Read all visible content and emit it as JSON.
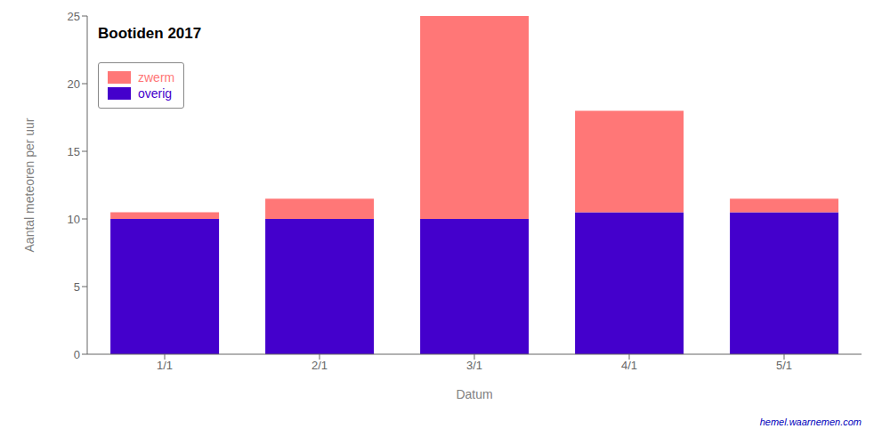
{
  "chart_data": {
    "type": "bar",
    "title": "Bootiden 2017",
    "xlabel": "Datum",
    "ylabel": "Aantal meteoren per uur",
    "categories": [
      "1/1",
      "2/1",
      "3/1",
      "4/1",
      "5/1"
    ],
    "series": [
      {
        "name": "overig",
        "color": "#4400cc",
        "values": [
          10,
          10,
          10,
          10.5,
          10.5
        ]
      },
      {
        "name": "zwerm",
        "color": "#ff7777",
        "values": [
          0.5,
          1.5,
          15,
          7.5,
          1.0
        ]
      }
    ],
    "stacked": true,
    "ylim": [
      0,
      25
    ],
    "yticks": [
      0,
      5,
      10,
      15,
      20,
      25
    ],
    "grid": false,
    "legend": "upper left",
    "annotations": [
      "hemel.waarnemen.com"
    ]
  }
}
